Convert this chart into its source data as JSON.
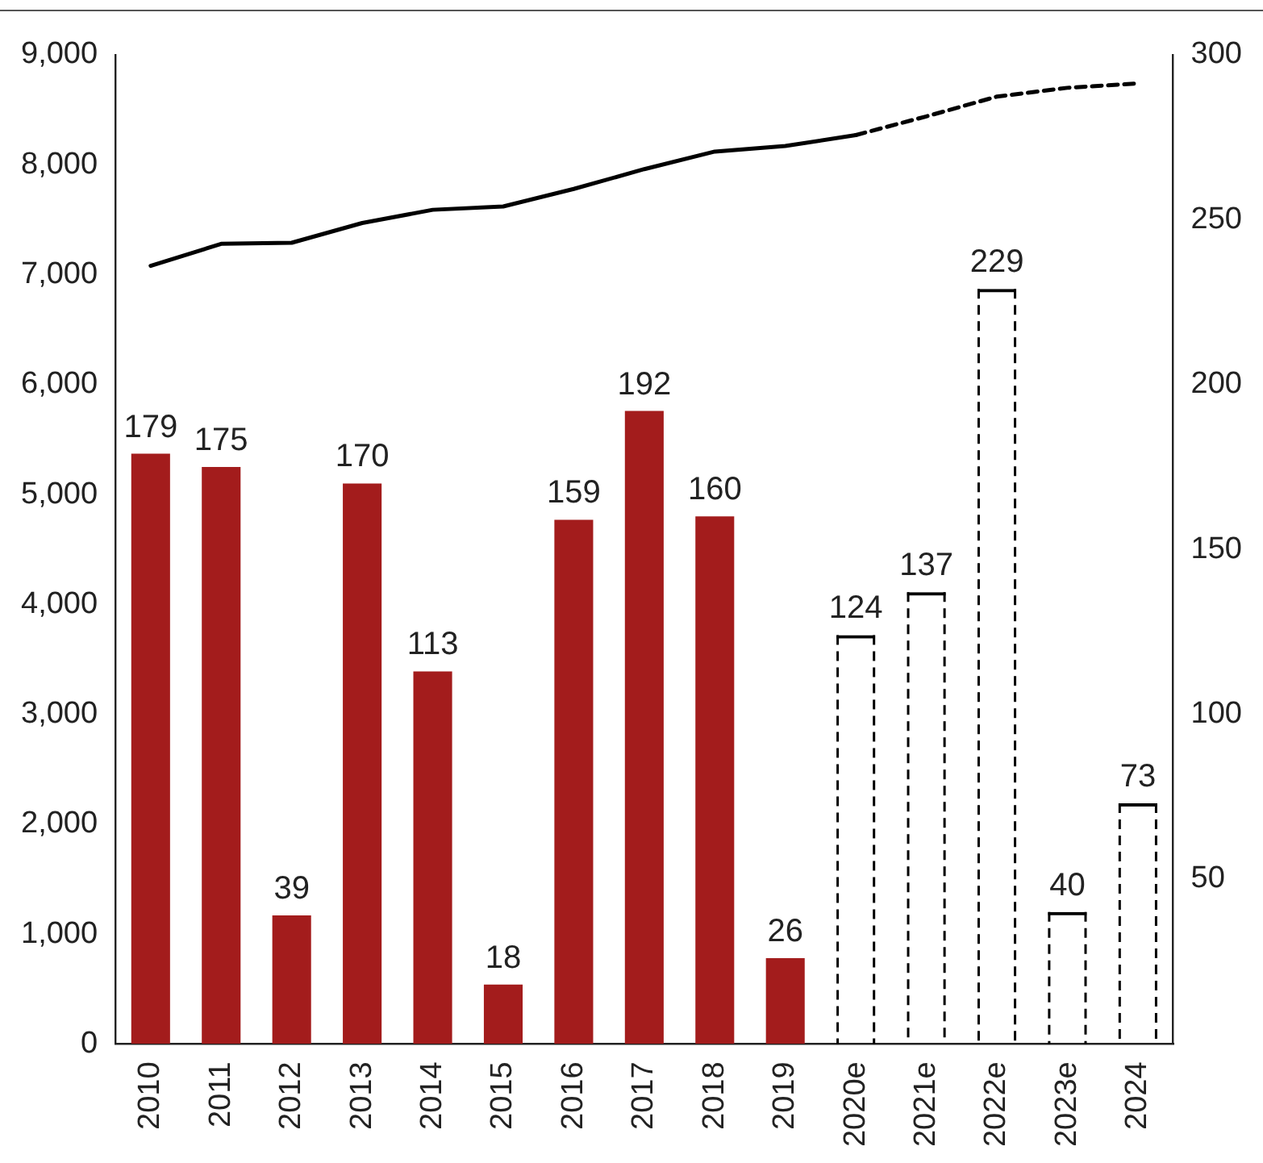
{
  "chart_data": {
    "type": "bar",
    "categories": [
      "2010",
      "2011",
      "2012",
      "2013",
      "2014",
      "2015",
      "2016",
      "2017",
      "2018",
      "2019",
      "2020e",
      "2021e",
      "2022e",
      "2023e",
      "2024"
    ],
    "series": [
      {
        "axis": "y2",
        "color": "#a31c1c",
        "values": [
          179,
          175,
          39,
          170,
          113,
          18,
          159,
          192,
          160,
          26,
          null,
          null,
          null,
          null,
          null
        ],
        "value_labels": [
          "179",
          "175",
          "39",
          "170",
          "113",
          "18",
          "159",
          "192",
          "160",
          "26",
          null,
          null,
          null,
          null,
          null
        ]
      },
      {
        "axis": "y2",
        "color": "#000000",
        "line_style": "dashed",
        "values": [
          null,
          null,
          null,
          null,
          null,
          null,
          null,
          null,
          null,
          null,
          124,
          137,
          229,
          40,
          73
        ],
        "value_labels": [
          null,
          null,
          null,
          null,
          null,
          null,
          null,
          null,
          null,
          null,
          "124",
          "137",
          "229",
          "40",
          "73"
        ]
      },
      {
        "type": "line",
        "axis": "y",
        "color": "#000000",
        "line_style": "solid",
        "values": [
          7080,
          7280,
          7290,
          7470,
          7590,
          7620,
          7780,
          7960,
          8120,
          8170,
          8270,
          null,
          null,
          null,
          null
        ]
      },
      {
        "type": "line",
        "axis": "y",
        "color": "#000000",
        "line_style": "dashed",
        "values": [
          null,
          null,
          null,
          null,
          null,
          null,
          null,
          null,
          null,
          null,
          8270,
          8440,
          8620,
          8700,
          8740
        ]
      }
    ],
    "ylim": [
      0,
      9000
    ],
    "yticks": [
      {
        "value": 0,
        "label": "0"
      },
      {
        "value": 1000,
        "label": "1,000"
      },
      {
        "value": 2000,
        "label": "2,000"
      },
      {
        "value": 3000,
        "label": "3,000"
      },
      {
        "value": 4000,
        "label": "4,000"
      },
      {
        "value": 5000,
        "label": "5,000"
      },
      {
        "value": 6000,
        "label": "6,000"
      },
      {
        "value": 7000,
        "label": "7,000"
      },
      {
        "value": 8000,
        "label": "8,000"
      },
      {
        "value": 9000,
        "label": "9,000"
      }
    ],
    "y2lim": [
      0,
      300
    ],
    "y2ticks": [
      50,
      100,
      150,
      200,
      250,
      300
    ],
    "grid": false,
    "legend": false,
    "marker": "none"
  }
}
